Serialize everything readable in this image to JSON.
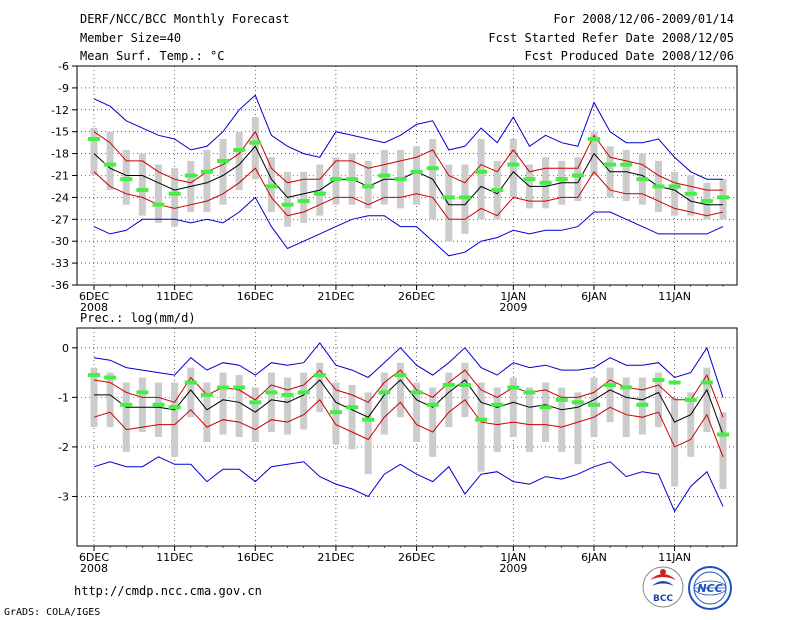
{
  "header": {
    "title": "DERF/NCC/BCC Monthly Forecast",
    "member_size": "Member Size=40",
    "variable": "Mean Surf. Temp.: °C",
    "period": "For 2008/12/06-2009/01/14",
    "started": "Fcst Started Refer Date 2008/12/05",
    "produced": "Fcst Produced Date 2008/12/06"
  },
  "footer": {
    "url": "http://cmdp.ncc.cma.gov.cn",
    "grads": "GrADS: COLA/IGES",
    "logo_bcc": "BCC",
    "logo_ncc": "NCC"
  },
  "colors": {
    "envelope": "#0000cc",
    "spread": "#cc0000",
    "mean": "#000000",
    "box": "#cccccc",
    "median": "#44ee44",
    "grid": "#000000"
  },
  "chart_data": [
    {
      "type": "line",
      "title": "Mean Surf. Temp.: °C",
      "ylim": [
        -36,
        -6
      ],
      "yticks": [
        -6,
        -9,
        -12,
        -15,
        -18,
        -21,
        -24,
        -27,
        -30,
        -33,
        -36
      ],
      "xtick_labels": [
        "6DEC",
        "11DEC",
        "16DEC",
        "21DEC",
        "26DEC",
        "1JAN",
        "6JAN",
        "11JAN"
      ],
      "xtick_index": [
        0,
        5,
        10,
        15,
        20,
        26,
        31,
        36
      ],
      "year_labels": [
        {
          "index": 0,
          "text": "2008"
        },
        {
          "index": 26,
          "text": "2009"
        }
      ],
      "days": 40,
      "max": [
        -10.5,
        -11.5,
        -13.5,
        -14.5,
        -15.5,
        -16,
        -17.5,
        -17,
        -15,
        -12,
        -10,
        -15.5,
        -17,
        -18,
        -18.5,
        -15,
        -15.5,
        -16,
        -16.5,
        -15.5,
        -14,
        -13.5,
        -17.5,
        -17,
        -14.5,
        -16.5,
        -13,
        -17,
        -15.5,
        -16.5,
        -17,
        -11,
        -15,
        -16.5,
        -16.5,
        -16,
        -18.5,
        -20.5,
        -21.5,
        -21.5
      ],
      "p_hi": [
        -15,
        -16.5,
        -19,
        -19,
        -20.5,
        -21.5,
        -22,
        -20.5,
        -19.5,
        -18,
        -15,
        -20,
        -22,
        -21.5,
        -21.5,
        -19,
        -19,
        -20,
        -19.5,
        -19,
        -18.5,
        -17.5,
        -21,
        -22,
        -19.5,
        -20.5,
        -17.5,
        -20.5,
        -20,
        -20,
        -20,
        -15.5,
        -18.5,
        -19,
        -19.5,
        -21,
        -22,
        -22.5,
        -23,
        -23
      ],
      "mean": [
        -18,
        -20,
        -21,
        -21,
        -22,
        -23,
        -22.5,
        -22,
        -21,
        -19.5,
        -17,
        -21.5,
        -24,
        -23.5,
        -23,
        -21.5,
        -21.5,
        -22.5,
        -21.5,
        -21.5,
        -20.5,
        -21.5,
        -25,
        -25,
        -22.5,
        -23.5,
        -20.5,
        -22.5,
        -22.5,
        -22,
        -22,
        -18,
        -20.5,
        -20.5,
        -21,
        -22.5,
        -23,
        -24.5,
        -25,
        -25
      ],
      "p_lo": [
        -20.5,
        -22.5,
        -23.5,
        -24,
        -25,
        -25.5,
        -25,
        -24.5,
        -23.5,
        -22,
        -20,
        -24,
        -26.5,
        -26,
        -25,
        -24,
        -24,
        -25,
        -24,
        -24,
        -23.5,
        -24,
        -27,
        -27,
        -25.5,
        -26.5,
        -24,
        -24.5,
        -24.5,
        -24,
        -24,
        -20.5,
        -23,
        -23.5,
        -23.5,
        -24.5,
        -25.5,
        -26,
        -26.5,
        -26
      ],
      "min": [
        -28,
        -29,
        -28.5,
        -27,
        -27,
        -27,
        -27.5,
        -27,
        -27.5,
        -26,
        -24,
        -28,
        -31,
        -30,
        -29,
        -28,
        -27,
        -26.5,
        -26.5,
        -28,
        -28,
        -30,
        -32,
        -31.5,
        -30,
        -29.5,
        -28.5,
        -29,
        -28.5,
        -28.5,
        -28,
        -26,
        -26,
        -27,
        -28,
        -29,
        -29,
        -29,
        -29,
        -28
      ],
      "box_hi": [
        -14.5,
        -15,
        -17.5,
        -18,
        -19.5,
        -20,
        -19,
        -17.5,
        -16,
        -15,
        -13,
        -18.5,
        -20.5,
        -20.5,
        -19.5,
        -18.5,
        -18,
        -19,
        -17.5,
        -17.5,
        -17,
        -16,
        -19.5,
        -19.5,
        -16,
        -19,
        -16,
        -19.5,
        -18.5,
        -19,
        -18.5,
        -15,
        -17,
        -17.5,
        -18,
        -19,
        -20.5,
        -21,
        -22,
        -21.5
      ],
      "box_lo": [
        -21,
        -23,
        -25,
        -26.5,
        -27.5,
        -28,
        -26,
        -26,
        -25,
        -23,
        -21.5,
        -26,
        -28,
        -27.5,
        -26.5,
        -25,
        -25,
        -25.5,
        -25,
        -25.5,
        -25,
        -27,
        -30,
        -29,
        -27,
        -27,
        -24,
        -25.5,
        -25.5,
        -25,
        -24.5,
        -21,
        -24,
        -24.5,
        -25,
        -26,
        -26.5,
        -26.5,
        -27,
        -27
      ],
      "median": [
        -16,
        -19.5,
        -21.5,
        -23,
        -25,
        -23.5,
        -21,
        -20.5,
        -19,
        -17.5,
        -16.5,
        -22.5,
        -25,
        -24.5,
        -23.5,
        -21.5,
        -21.5,
        -22.5,
        -21,
        -21.5,
        -20.5,
        -20,
        -24,
        -24,
        -20.5,
        -23,
        -19.5,
        -21.5,
        -22,
        -21.5,
        -21,
        -16,
        -19.5,
        -19.5,
        -21.5,
        -22.5,
        -22.5,
        -23.5,
        -24.5,
        -24
      ]
    },
    {
      "type": "line",
      "title": "Prec.: log(mm/d)",
      "ylim": [
        -4,
        0.4
      ],
      "yticks": [
        0,
        -1,
        -2,
        -3
      ],
      "xtick_labels": [
        "6DEC",
        "11DEC",
        "16DEC",
        "21DEC",
        "26DEC",
        "1JAN",
        "6JAN",
        "11JAN"
      ],
      "xtick_index": [
        0,
        5,
        10,
        15,
        20,
        26,
        31,
        36
      ],
      "year_labels": [
        {
          "index": 0,
          "text": "2008"
        },
        {
          "index": 26,
          "text": "2009"
        }
      ],
      "days": 40,
      "max": [
        -0.2,
        -0.25,
        -0.4,
        -0.45,
        -0.5,
        -0.55,
        -0.2,
        -0.45,
        -0.3,
        -0.35,
        -0.55,
        -0.3,
        -0.35,
        -0.3,
        0.1,
        -0.35,
        -0.45,
        -0.6,
        -0.3,
        0.0,
        -0.35,
        -0.55,
        -0.3,
        0.0,
        -0.4,
        -0.55,
        -0.3,
        -0.4,
        -0.35,
        -0.45,
        -0.45,
        -0.4,
        -0.2,
        -0.35,
        -0.35,
        -0.3,
        -0.6,
        -0.5,
        0.0,
        -1.0
      ],
      "p_hi": [
        -0.65,
        -0.7,
        -0.9,
        -1.0,
        -1.0,
        -1.1,
        -0.6,
        -0.95,
        -0.8,
        -0.85,
        -1.05,
        -0.75,
        -0.85,
        -0.75,
        -0.45,
        -0.85,
        -0.95,
        -1.1,
        -0.7,
        -0.45,
        -0.85,
        -1.0,
        -0.7,
        -0.45,
        -0.85,
        -1.0,
        -0.8,
        -0.9,
        -0.85,
        -1.0,
        -1.0,
        -0.9,
        -0.65,
        -0.8,
        -0.85,
        -0.75,
        -1.05,
        -1.05,
        -0.55,
        -1.4
      ],
      "mean": [
        -0.95,
        -0.95,
        -1.2,
        -1.2,
        -1.2,
        -1.25,
        -0.85,
        -1.25,
        -1.05,
        -1.1,
        -1.3,
        -1.05,
        -1.1,
        -0.95,
        -0.65,
        -1.1,
        -1.25,
        -1.4,
        -0.95,
        -0.65,
        -1.05,
        -1.2,
        -0.9,
        -0.65,
        -1.1,
        -1.2,
        -1.1,
        -1.2,
        -1.15,
        -1.25,
        -1.2,
        -1.05,
        -0.85,
        -1.0,
        -1.05,
        -0.9,
        -1.5,
        -1.35,
        -0.85,
        -1.75
      ],
      "p_lo": [
        -1.4,
        -1.3,
        -1.65,
        -1.6,
        -1.55,
        -1.55,
        -1.25,
        -1.6,
        -1.45,
        -1.5,
        -1.65,
        -1.45,
        -1.5,
        -1.35,
        -1.05,
        -1.55,
        -1.7,
        -1.85,
        -1.4,
        -1.1,
        -1.55,
        -1.7,
        -1.3,
        -1.05,
        -1.5,
        -1.55,
        -1.5,
        -1.55,
        -1.55,
        -1.6,
        -1.5,
        -1.4,
        -1.2,
        -1.35,
        -1.4,
        -1.3,
        -2.0,
        -1.85,
        -1.35,
        -2.2
      ],
      "min": [
        -2.4,
        -2.3,
        -2.4,
        -2.4,
        -2.2,
        -2.35,
        -2.35,
        -2.7,
        -2.45,
        -2.45,
        -2.7,
        -2.4,
        -2.35,
        -2.3,
        -2.6,
        -2.75,
        -2.85,
        -3.0,
        -2.55,
        -2.35,
        -2.55,
        -2.7,
        -2.4,
        -2.95,
        -2.55,
        -2.5,
        -2.7,
        -2.75,
        -2.6,
        -2.65,
        -2.55,
        -2.4,
        -2.3,
        -2.6,
        -2.5,
        -2.55,
        -3.3,
        -2.8,
        -2.5,
        -3.2
      ],
      "box_hi": [
        -0.4,
        -0.5,
        -0.7,
        -0.6,
        -0.7,
        -0.7,
        -0.4,
        -0.7,
        -0.5,
        -0.55,
        -0.8,
        -0.5,
        -0.6,
        -0.5,
        -0.3,
        -0.7,
        -0.75,
        -0.9,
        -0.5,
        -0.3,
        -0.7,
        -0.8,
        -0.5,
        -0.3,
        -0.7,
        -0.8,
        -0.6,
        -0.8,
        -0.7,
        -0.8,
        -0.9,
        -0.6,
        -0.4,
        -0.6,
        -0.6,
        -0.5,
        -1.0,
        -0.9,
        -0.4,
        -1.3
      ],
      "box_lo": [
        -1.6,
        -1.6,
        -2.1,
        -1.7,
        -1.8,
        -2.2,
        -1.4,
        -1.9,
        -1.75,
        -1.8,
        -1.9,
        -1.7,
        -1.75,
        -1.65,
        -1.3,
        -1.95,
        -2.05,
        -2.55,
        -1.75,
        -1.4,
        -1.9,
        -2.2,
        -1.6,
        -1.4,
        -2.5,
        -2.1,
        -1.8,
        -2.1,
        -1.9,
        -2.1,
        -2.35,
        -1.8,
        -1.5,
        -1.8,
        -1.75,
        -1.6,
        -2.8,
        -2.2,
        -1.7,
        -2.85
      ],
      "median": [
        -0.55,
        -0.6,
        -1.15,
        -0.9,
        -1.15,
        -1.2,
        -0.7,
        -0.95,
        -0.8,
        -0.8,
        -1.1,
        -0.9,
        -0.95,
        -0.9,
        -0.55,
        -1.3,
        -1.2,
        -1.45,
        -0.9,
        -0.55,
        -0.9,
        -1.15,
        -0.75,
        -0.75,
        -1.45,
        -1.15,
        -0.8,
        -0.9,
        -1.2,
        -1.05,
        -1.1,
        -1.15,
        -0.75,
        -0.8,
        -1.15,
        -0.65,
        -0.7,
        -1.05,
        -0.7,
        -1.75
      ]
    }
  ]
}
